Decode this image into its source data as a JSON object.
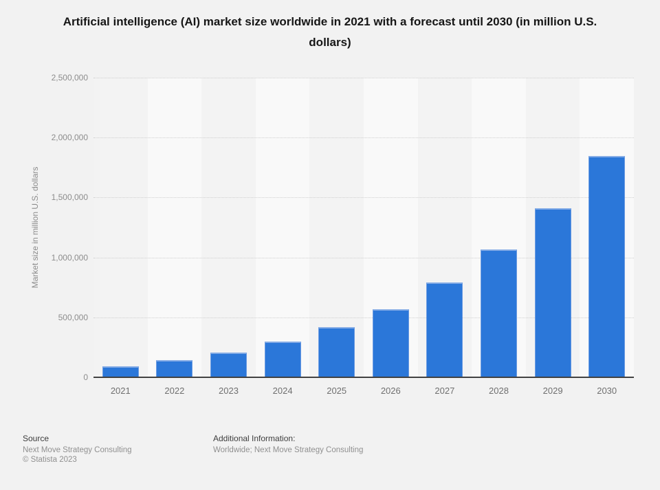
{
  "chart_data": {
    "type": "bar",
    "title": "Artificial intelligence (AI) market size worldwide in 2021 with a forecast until 2030 (in million U.S. dollars)",
    "categories": [
      "2021",
      "2022",
      "2023",
      "2024",
      "2025",
      "2026",
      "2027",
      "2028",
      "2029",
      "2030"
    ],
    "values": [
      93530,
      142320,
      207900,
      298250,
      420470,
      567590,
      790000,
      1065000,
      1410000,
      1847500
    ],
    "xlabel": "",
    "ylabel": "Market size in million U.S. dollars",
    "ylim": [
      0,
      2500000
    ],
    "yticks": [
      0,
      500000,
      1000000,
      1500000,
      2000000,
      2500000
    ],
    "grid": "horizontal-dotted",
    "legend": "none",
    "bar_color": "#2b77d9"
  },
  "footer": {
    "source_label": "Source",
    "source_line1": "Next Move Strategy Consulting",
    "source_line2": "© Statista 2023",
    "additional_label": "Additional Information:",
    "additional_line1": "Worldwide; Next Move Strategy Consulting"
  },
  "colors": {
    "background": "#f2f2f2",
    "band_light": "#f9f9f9",
    "band_dark": "#f3f3f3",
    "bar": "#2b77d9",
    "bar_edge": "#85ace6",
    "gridline": "#cfcfcf",
    "axis_line": "#414141",
    "title_text": "#161616",
    "tick_text": "#8c8c8c",
    "footer_label_text": "#3c3c3c",
    "footer_text": "#909090"
  }
}
